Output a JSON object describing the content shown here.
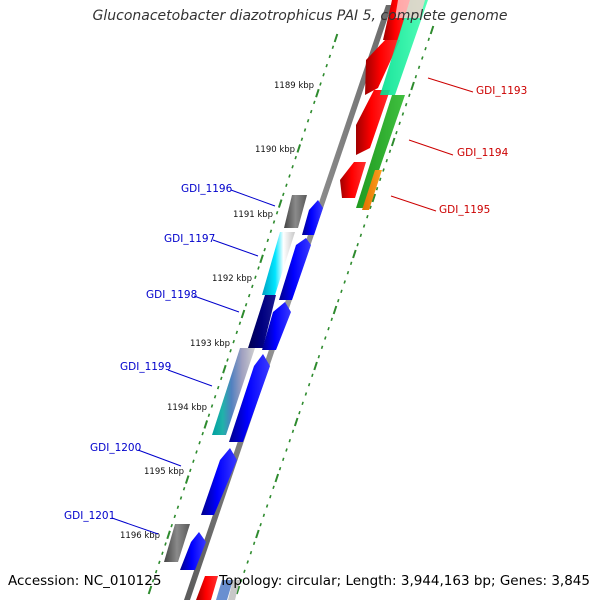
{
  "title": "Gluconacetobacter diazotrophicus PAI 5, complete genome",
  "footer": {
    "accession": "Accession: NC_010125",
    "topology": "Topology: circular; Length: 3,944,163 bp; Genes: 3,845"
  },
  "colors": {
    "backbone": "#808080",
    "tick": "#2e8b2e",
    "forward_label": "#cc0000",
    "reverse_label": "#0000cc"
  },
  "kbp_ticks": [
    {
      "label": "1189 kbp"
    },
    {
      "label": "1190 kbp"
    },
    {
      "label": "1191 kbp"
    },
    {
      "label": "1192 kbp"
    },
    {
      "label": "1193 kbp"
    },
    {
      "label": "1194 kbp"
    },
    {
      "label": "1195 kbp"
    },
    {
      "label": "1196 kbp"
    }
  ],
  "forward_genes": [
    {
      "id": "GDI_1193",
      "color": "#ff0000"
    },
    {
      "id": "GDI_1194",
      "color": "#ff0000"
    },
    {
      "id": "GDI_1195",
      "color": "#ff0000"
    }
  ],
  "reverse_genes": [
    {
      "id": "GDI_1196",
      "color": "#0000ff"
    },
    {
      "id": "GDI_1197",
      "color": "#0000ff"
    },
    {
      "id": "GDI_1198",
      "color": "#0000ff"
    },
    {
      "id": "GDI_1199",
      "color": "#0000ff"
    },
    {
      "id": "GDI_1200",
      "color": "#0000ff"
    },
    {
      "id": "GDI_1201",
      "color": "#0000ff"
    }
  ]
}
